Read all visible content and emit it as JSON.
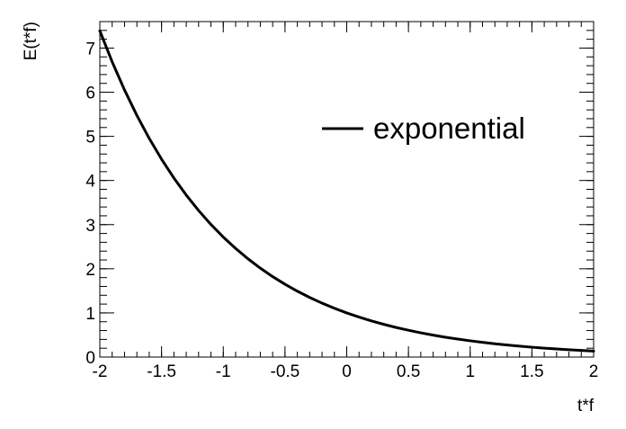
{
  "chart_data": {
    "type": "line",
    "xlabel": "t*f",
    "ylabel": "E(t*f)",
    "xlim": [
      -2,
      2
    ],
    "ylim": [
      0,
      7.6
    ],
    "x_ticks": [
      -2,
      -1.5,
      -1,
      -0.5,
      0,
      0.5,
      1,
      1.5,
      2
    ],
    "x_tick_labels": [
      "-2",
      "-1.5",
      "-1",
      "-0.5",
      "0",
      "0.5",
      "1",
      "1.5",
      "2"
    ],
    "y_ticks": [
      0,
      1,
      2,
      3,
      4,
      5,
      6,
      7
    ],
    "y_tick_labels": [
      "0",
      "1",
      "2",
      "3",
      "4",
      "5",
      "6",
      "7"
    ],
    "x_minor_step": 0.1,
    "y_minor_step": 0.2,
    "grid": false,
    "legend_position": "top-right",
    "series": [
      {
        "name": "exponential",
        "color": "#000000",
        "x": [
          -2,
          -1.9,
          -1.8,
          -1.7,
          -1.6,
          -1.5,
          -1.4,
          -1.3,
          -1.2,
          -1.1,
          -1,
          -0.9,
          -0.8,
          -0.7,
          -0.6,
          -0.5,
          -0.4,
          -0.3,
          -0.2,
          -0.1,
          0,
          0.1,
          0.2,
          0.3,
          0.4,
          0.5,
          0.6,
          0.7,
          0.8,
          0.9,
          1,
          1.1,
          1.2,
          1.3,
          1.4,
          1.5,
          1.6,
          1.7,
          1.8,
          1.9,
          2
        ],
        "y": [
          7.389,
          6.686,
          6.05,
          5.474,
          4.953,
          4.482,
          4.055,
          3.669,
          3.32,
          3.004,
          2.718,
          2.46,
          2.226,
          2.014,
          1.822,
          1.649,
          1.492,
          1.35,
          1.221,
          1.105,
          1.0,
          0.905,
          0.819,
          0.741,
          0.67,
          0.607,
          0.549,
          0.497,
          0.449,
          0.407,
          0.368,
          0.333,
          0.301,
          0.273,
          0.247,
          0.223,
          0.202,
          0.183,
          0.165,
          0.15,
          0.135
        ]
      }
    ]
  }
}
